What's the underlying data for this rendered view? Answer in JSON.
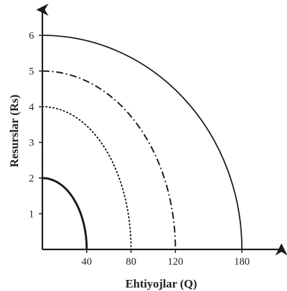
{
  "chart_data": {
    "type": "line",
    "title": "",
    "xlabel": "Ehtiyojlar (Q)",
    "ylabel": "Resurslar (Rs)",
    "xlim": [
      0,
      200
    ],
    "ylim": [
      0,
      6.9
    ],
    "x_ticks": [
      40,
      80,
      120,
      180
    ],
    "y_ticks": [
      1,
      2,
      3,
      4,
      5,
      6
    ],
    "grid": false,
    "series": [
      {
        "style": "solid-thick",
        "color": "#1a1a1a",
        "points": [
          [
            0,
            2
          ],
          [
            20,
            1.73
          ],
          [
            32,
            1.2
          ],
          [
            38,
            0.62
          ],
          [
            40,
            0
          ]
        ]
      },
      {
        "style": "dotted",
        "color": "#1a1a1a",
        "points": [
          [
            0,
            4
          ],
          [
            40,
            3.46
          ],
          [
            64,
            2.4
          ],
          [
            76,
            1.25
          ],
          [
            80,
            0
          ]
        ]
      },
      {
        "style": "dash-dot",
        "color": "#1a1a1a",
        "points": [
          [
            0,
            5
          ],
          [
            60,
            4.33
          ],
          [
            96,
            3.0
          ],
          [
            114,
            1.56
          ],
          [
            120,
            0
          ]
        ]
      },
      {
        "style": "solid-thin",
        "color": "#1a1a1a",
        "points": [
          [
            0,
            6
          ],
          [
            90,
            5.2
          ],
          [
            144,
            3.6
          ],
          [
            171,
            1.87
          ],
          [
            180,
            0
          ]
        ]
      }
    ]
  }
}
